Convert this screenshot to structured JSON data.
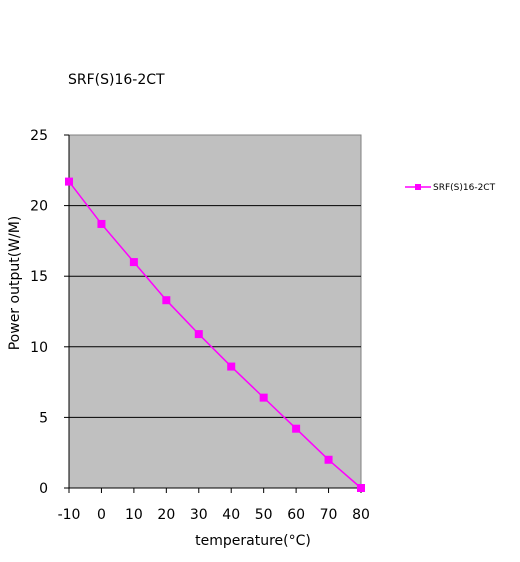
{
  "chart_data": {
    "type": "line",
    "title": "SRF(S)16-2CT",
    "xlabel": "temperature(°C)",
    "ylabel": "Power output(W/M)",
    "x": [
      -10,
      0,
      10,
      20,
      30,
      40,
      50,
      60,
      70,
      80
    ],
    "xlim": [
      -10,
      80
    ],
    "ylim": [
      0,
      25
    ],
    "x_ticks": [
      "-10",
      "0",
      "10",
      "20",
      "30",
      "40",
      "50",
      "60",
      "70",
      "80"
    ],
    "y_ticks": [
      "0",
      "5",
      "10",
      "15",
      "20",
      "25"
    ],
    "grid": "horizontal",
    "legend": "right",
    "plot_background": "#c0c0c0",
    "series": [
      {
        "name": "SRF(S)16-2CT",
        "color": "#ff00ff",
        "marker": "square",
        "values": [
          21.7,
          18.7,
          16.0,
          13.3,
          10.9,
          8.6,
          6.4,
          4.2,
          2.0,
          0.0
        ]
      }
    ]
  }
}
